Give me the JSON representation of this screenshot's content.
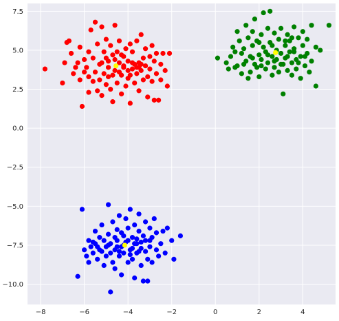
{
  "chart_data": {
    "type": "scatter",
    "title": "",
    "xlabel": "",
    "ylabel": "",
    "xlim": [
      -8.6,
      5.5
    ],
    "ylim": [
      -11.3,
      8.0
    ],
    "x_ticks": [
      -8,
      -6,
      -4,
      -2,
      0,
      2,
      4
    ],
    "x_tick_labels": [
      "−8",
      "−6",
      "−4",
      "−2",
      "0",
      "2",
      "4"
    ],
    "y_ticks": [
      7.5,
      5.0,
      2.5,
      0.0,
      -2.5,
      -5.0,
      -7.5,
      -10.0
    ],
    "y_tick_labels": [
      "7.5",
      "5.0",
      "2.5",
      "0.0",
      "−2.5",
      "−5.0",
      "−7.5",
      "−10.0"
    ],
    "grid": true,
    "legend": "none",
    "colors": {
      "background": "#eaeaf2",
      "grid": "#ffffff",
      "cluster_red": "#ff0000",
      "cluster_green": "#008000",
      "cluster_blue": "#0000ff",
      "centroid": "#ffff00"
    },
    "series": [
      {
        "color": "red",
        "points": [
          [
            -7.8,
            3.8
          ],
          [
            -7.0,
            2.9
          ],
          [
            -6.9,
            4.2
          ],
          [
            -6.8,
            5.5
          ],
          [
            -6.7,
            5.6
          ],
          [
            -6.6,
            4.8
          ],
          [
            -6.5,
            3.5
          ],
          [
            -6.4,
            3.9
          ],
          [
            -6.3,
            4.2
          ],
          [
            -6.2,
            3.1
          ],
          [
            -6.2,
            5.2
          ],
          [
            -6.1,
            1.4
          ],
          [
            -6.0,
            3.6
          ],
          [
            -6.0,
            4.4
          ],
          [
            -5.9,
            3.9
          ],
          [
            -5.8,
            2.3
          ],
          [
            -5.8,
            4.9
          ],
          [
            -5.7,
            6.3
          ],
          [
            -5.6,
            3.0
          ],
          [
            -5.6,
            4.5
          ],
          [
            -5.5,
            6.8
          ],
          [
            -5.5,
            3.6
          ],
          [
            -5.4,
            2.4
          ],
          [
            -5.4,
            5.4
          ],
          [
            -5.3,
            3.1
          ],
          [
            -5.3,
            4.1
          ],
          [
            -5.2,
            6.5
          ],
          [
            -5.2,
            2.1
          ],
          [
            -5.1,
            3.5
          ],
          [
            -5.1,
            4.9
          ],
          [
            -5.0,
            5.7
          ],
          [
            -5.0,
            2.8
          ],
          [
            -4.9,
            4.3
          ],
          [
            -4.9,
            3.3
          ],
          [
            -4.8,
            5.3
          ],
          [
            -4.8,
            2.5
          ],
          [
            -4.7,
            4.7
          ],
          [
            -4.7,
            1.7
          ],
          [
            -4.6,
            6.6
          ],
          [
            -4.6,
            3.7
          ],
          [
            -4.5,
            4.9
          ],
          [
            -4.5,
            2.9
          ],
          [
            -4.4,
            4.2
          ],
          [
            -4.4,
            5.6
          ],
          [
            -4.3,
            3.4
          ],
          [
            -4.3,
            2.2
          ],
          [
            -4.2,
            4.6
          ],
          [
            -4.2,
            3.9
          ],
          [
            -4.1,
            5.1
          ],
          [
            -4.1,
            2.7
          ],
          [
            -4.0,
            4.3
          ],
          [
            -4.0,
            3.2
          ],
          [
            -3.9,
            5.4
          ],
          [
            -3.9,
            1.6
          ],
          [
            -3.8,
            3.8
          ],
          [
            -3.8,
            4.9
          ],
          [
            -3.7,
            2.9
          ],
          [
            -3.7,
            4.1
          ],
          [
            -3.6,
            3.5
          ],
          [
            -3.6,
            5.6
          ],
          [
            -3.5,
            4.2
          ],
          [
            -3.5,
            2.4
          ],
          [
            -3.4,
            3.7
          ],
          [
            -3.4,
            6.0
          ],
          [
            -3.3,
            4.5
          ],
          [
            -3.3,
            3.1
          ],
          [
            -3.2,
            5.1
          ],
          [
            -3.2,
            4.0
          ],
          [
            -3.1,
            3.3
          ],
          [
            -3.1,
            2.0
          ],
          [
            -3.0,
            4.6
          ],
          [
            -3.0,
            3.8
          ],
          [
            -2.9,
            5.3
          ],
          [
            -2.9,
            3.0
          ],
          [
            -2.8,
            1.8
          ],
          [
            -2.8,
            4.3
          ],
          [
            -2.7,
            4.8
          ],
          [
            -2.7,
            3.5
          ],
          [
            -2.6,
            1.8
          ],
          [
            -2.5,
            4.1
          ],
          [
            -2.5,
            3.1
          ],
          [
            -2.4,
            4.8
          ],
          [
            -2.3,
            3.7
          ],
          [
            -2.2,
            2.7
          ],
          [
            -2.1,
            4.8
          ],
          [
            -5.8,
            3.3
          ],
          [
            -5.2,
            4.2
          ],
          [
            -4.9,
            3.9
          ],
          [
            -4.6,
            4.4
          ],
          [
            -4.4,
            3.6
          ],
          [
            -4.2,
            4.0
          ],
          [
            -4.0,
            3.7
          ],
          [
            -3.8,
            4.2
          ],
          [
            -3.6,
            3.9
          ],
          [
            -3.4,
            4.1
          ],
          [
            -5.0,
            4.5
          ],
          [
            -4.7,
            3.4
          ],
          [
            -4.3,
            4.7
          ],
          [
            -3.9,
            3.4
          ],
          [
            -3.5,
            3.9
          ]
        ]
      },
      {
        "color": "green",
        "points": [
          [
            0.1,
            4.5
          ],
          [
            0.5,
            4.2
          ],
          [
            0.6,
            3.8
          ],
          [
            0.7,
            4.6
          ],
          [
            0.8,
            5.2
          ],
          [
            0.9,
            3.9
          ],
          [
            0.9,
            4.9
          ],
          [
            1.0,
            6.2
          ],
          [
            1.0,
            4.0
          ],
          [
            1.1,
            5.6
          ],
          [
            1.2,
            4.8
          ],
          [
            1.2,
            3.5
          ],
          [
            1.3,
            5.1
          ],
          [
            1.4,
            4.3
          ],
          [
            1.4,
            6.6
          ],
          [
            1.5,
            3.2
          ],
          [
            1.5,
            5.8
          ],
          [
            1.6,
            4.6
          ],
          [
            1.6,
            3.6
          ],
          [
            1.7,
            5.3
          ],
          [
            1.7,
            6.2
          ],
          [
            1.8,
            4.1
          ],
          [
            1.8,
            7.0
          ],
          [
            1.9,
            3.9
          ],
          [
            1.9,
            5.6
          ],
          [
            2.0,
            4.7
          ],
          [
            2.0,
            3.3
          ],
          [
            2.1,
            6.0
          ],
          [
            2.1,
            4.4
          ],
          [
            2.2,
            7.4
          ],
          [
            2.2,
            5.2
          ],
          [
            2.3,
            3.8
          ],
          [
            2.3,
            4.9
          ],
          [
            2.4,
            6.4
          ],
          [
            2.4,
            4.2
          ],
          [
            2.5,
            7.5
          ],
          [
            2.5,
            5.5
          ],
          [
            2.6,
            3.4
          ],
          [
            2.6,
            4.6
          ],
          [
            2.7,
            6.1
          ],
          [
            2.7,
            3.9
          ],
          [
            2.8,
            5.0
          ],
          [
            2.8,
            4.4
          ],
          [
            2.9,
            5.7
          ],
          [
            2.9,
            3.6
          ],
          [
            3.0,
            4.8
          ],
          [
            3.0,
            6.4
          ],
          [
            3.1,
            4.1
          ],
          [
            3.1,
            2.2
          ],
          [
            3.2,
            5.3
          ],
          [
            3.2,
            4.5
          ],
          [
            3.3,
            6.0
          ],
          [
            3.3,
            3.7
          ],
          [
            3.4,
            4.9
          ],
          [
            3.4,
            5.6
          ],
          [
            3.5,
            4.2
          ],
          [
            3.5,
            3.4
          ],
          [
            3.6,
            6.5
          ],
          [
            3.6,
            5.1
          ],
          [
            3.7,
            4.4
          ],
          [
            3.7,
            3.8
          ],
          [
            3.8,
            5.8
          ],
          [
            3.9,
            4.6
          ],
          [
            3.9,
            3.2
          ],
          [
            4.0,
            5.3
          ],
          [
            4.0,
            6.2
          ],
          [
            4.1,
            4.0
          ],
          [
            4.2,
            4.8
          ],
          [
            4.2,
            5.7
          ],
          [
            4.3,
            3.6
          ],
          [
            4.4,
            6.6
          ],
          [
            4.4,
            4.3
          ],
          [
            4.6,
            5.2
          ],
          [
            4.6,
            2.7
          ],
          [
            4.8,
            5.0
          ],
          [
            5.2,
            6.6
          ],
          [
            1.3,
            4.1
          ],
          [
            1.7,
            4.5
          ],
          [
            2.1,
            4.0
          ],
          [
            2.4,
            4.7
          ],
          [
            2.7,
            4.3
          ],
          [
            3.0,
            4.1
          ],
          [
            3.3,
            4.6
          ],
          [
            3.6,
            4.9
          ],
          [
            3.8,
            4.2
          ],
          [
            4.1,
            4.6
          ],
          [
            2.0,
            5.5
          ],
          [
            2.6,
            5.3
          ],
          [
            3.2,
            5.6
          ],
          [
            3.5,
            5.8
          ]
        ]
      },
      {
        "color": "blue",
        "points": [
          [
            -6.3,
            -9.5
          ],
          [
            -6.1,
            -5.2
          ],
          [
            -6.0,
            -7.8
          ],
          [
            -5.9,
            -8.2
          ],
          [
            -5.8,
            -7.2
          ],
          [
            -5.8,
            -8.6
          ],
          [
            -5.7,
            -7.6
          ],
          [
            -5.6,
            -8.0
          ],
          [
            -5.5,
            -6.6
          ],
          [
            -5.5,
            -7.4
          ],
          [
            -5.4,
            -8.4
          ],
          [
            -5.3,
            -7.0
          ],
          [
            -5.3,
            -7.8
          ],
          [
            -5.2,
            -6.2
          ],
          [
            -5.1,
            -8.8
          ],
          [
            -5.1,
            -7.2
          ],
          [
            -5.0,
            -7.6
          ],
          [
            -5.0,
            -8.2
          ],
          [
            -4.9,
            -4.9
          ],
          [
            -4.9,
            -6.8
          ],
          [
            -4.8,
            -10.5
          ],
          [
            -4.8,
            -7.4
          ],
          [
            -4.7,
            -8.6
          ],
          [
            -4.7,
            -6.0
          ],
          [
            -4.6,
            -7.8
          ],
          [
            -4.6,
            -9.0
          ],
          [
            -4.5,
            -6.5
          ],
          [
            -4.5,
            -7.2
          ],
          [
            -4.4,
            -8.2
          ],
          [
            -4.4,
            -5.6
          ],
          [
            -4.3,
            -7.6
          ],
          [
            -4.3,
            -9.4
          ],
          [
            -4.2,
            -6.9
          ],
          [
            -4.2,
            -8.0
          ],
          [
            -4.1,
            -5.8
          ],
          [
            -4.1,
            -7.3
          ],
          [
            -4.0,
            -8.6
          ],
          [
            -4.0,
            -6.4
          ],
          [
            -3.9,
            -7.8
          ],
          [
            -3.9,
            -5.2
          ],
          [
            -3.8,
            -7.0
          ],
          [
            -3.8,
            -8.4
          ],
          [
            -3.7,
            -6.2
          ],
          [
            -3.7,
            -9.6
          ],
          [
            -3.6,
            -7.4
          ],
          [
            -3.6,
            -8.0
          ],
          [
            -3.5,
            -6.6
          ],
          [
            -3.5,
            -5.5
          ],
          [
            -3.4,
            -7.7
          ],
          [
            -3.4,
            -8.8
          ],
          [
            -3.3,
            -6.9
          ],
          [
            -3.3,
            -9.8
          ],
          [
            -3.2,
            -7.2
          ],
          [
            -3.2,
            -6.0
          ],
          [
            -3.1,
            -8.4
          ],
          [
            -3.1,
            -9.8
          ],
          [
            -3.0,
            -7.6
          ],
          [
            -3.0,
            -6.4
          ],
          [
            -2.9,
            -7.0
          ],
          [
            -2.9,
            -8.6
          ],
          [
            -2.8,
            -5.8
          ],
          [
            -2.7,
            -7.8
          ],
          [
            -2.7,
            -6.7
          ],
          [
            -2.6,
            -8.2
          ],
          [
            -2.5,
            -7.4
          ],
          [
            -2.4,
            -6.6
          ],
          [
            -2.3,
            -8.0
          ],
          [
            -2.2,
            -6.4
          ],
          [
            -2.0,
            -7.2
          ],
          [
            -1.9,
            -8.4
          ],
          [
            -1.6,
            -6.9
          ],
          [
            -5.6,
            -7.3
          ],
          [
            -5.2,
            -7.9
          ],
          [
            -4.9,
            -7.5
          ],
          [
            -4.6,
            -7.0
          ],
          [
            -4.4,
            -7.9
          ],
          [
            -4.2,
            -7.5
          ],
          [
            -4.0,
            -7.2
          ],
          [
            -3.8,
            -7.7
          ],
          [
            -3.6,
            -7.1
          ],
          [
            -3.4,
            -7.3
          ],
          [
            -3.2,
            -7.9
          ],
          [
            -5.4,
            -7.6
          ],
          [
            -4.8,
            -8.0
          ],
          [
            -4.5,
            -7.6
          ],
          [
            -3.9,
            -8.1
          ],
          [
            -3.5,
            -7.9
          ],
          [
            -3.0,
            -7.2
          ],
          [
            -4.3,
            -6.7
          ],
          [
            -3.7,
            -7.4
          ]
        ]
      }
    ],
    "centroids": [
      {
        "color": "yellow",
        "x": -4.55,
        "y": 4.0
      },
      {
        "color": "yellow",
        "x": 2.75,
        "y": 4.85
      },
      {
        "color": "yellow",
        "x": -4.15,
        "y": -7.5
      }
    ]
  }
}
